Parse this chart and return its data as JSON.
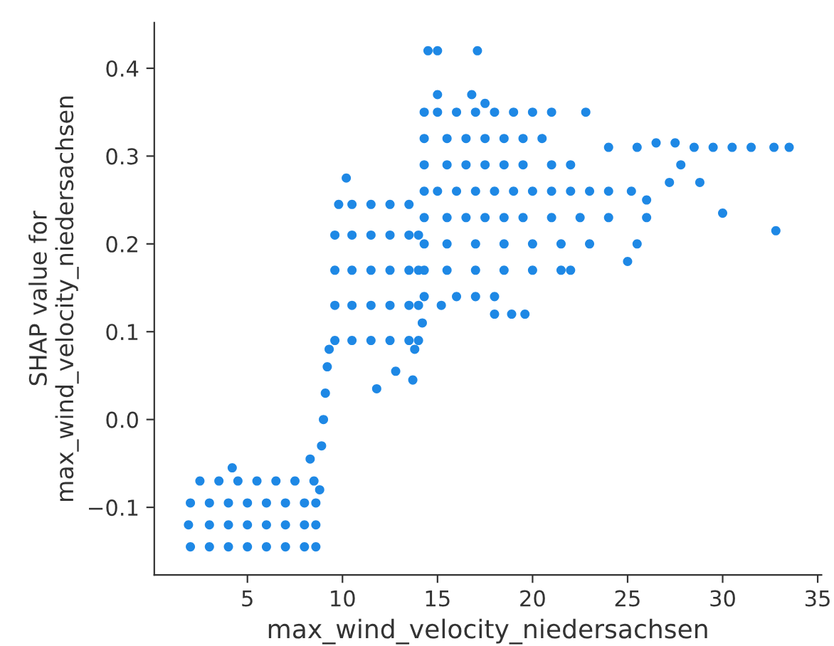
{
  "chart_data": {
    "type": "scatter",
    "xlabel": "max_wind_velocity_niedersachsen",
    "ylabel": "SHAP value for\nmax_wind_velocity_niedersachsen",
    "color": "#1e88e5",
    "marker": "circle",
    "grid": false,
    "xlim": [
      0.1,
      35.2
    ],
    "ylim": [
      -0.177,
      0.452
    ],
    "xticks": [
      5,
      10,
      15,
      20,
      25,
      30,
      35
    ],
    "yticks": [
      {
        "value": -0.1,
        "label": "−0.1"
      },
      {
        "value": 0,
        "label": "0.0"
      },
      0.1,
      0.2,
      0.3,
      0.4
    ],
    "x": [
      2,
      3,
      4,
      5,
      6,
      7,
      8,
      8.6,
      1.9,
      3,
      4,
      5,
      6,
      7,
      8,
      8.6,
      2,
      3,
      4,
      5,
      6,
      7,
      8,
      8.6,
      2.5,
      3.5,
      4.5,
      5.5,
      6.5,
      7.5,
      8.5,
      4.2,
      8.3,
      8.8,
      8.9,
      9.0,
      9.1,
      9.2,
      9.3,
      9.6,
      10.5,
      11.5,
      12.5,
      13.5,
      14.0,
      9.6,
      10.5,
      11.5,
      12.5,
      13.5,
      14.0,
      9.6,
      10.5,
      11.5,
      12.5,
      13.5,
      14.0,
      9.6,
      10.5,
      11.5,
      12.5,
      13.5,
      14.0,
      9.8,
      10.5,
      11.5,
      12.5,
      13.5,
      10.2,
      11.8,
      12.8,
      13.7,
      14.5,
      15.0,
      17.1,
      15,
      16.8,
      17.5,
      14.3,
      15,
      16,
      17,
      18,
      19,
      20,
      21,
      22.8,
      14.3,
      15.5,
      16.5,
      17.5,
      18.5,
      19.5,
      20.5,
      14.3,
      15.5,
      16.5,
      17.5,
      18.5,
      19.5,
      21,
      22,
      14.3,
      15,
      16,
      17,
      18,
      19,
      20,
      21,
      22,
      23,
      24,
      25.2,
      14.3,
      15.5,
      16.5,
      17.5,
      18.5,
      19.5,
      21,
      22.5,
      24,
      26,
      14.3,
      15.5,
      17,
      18.5,
      20,
      21.5,
      23,
      25.5,
      14.3,
      15.5,
      17,
      18.5,
      20,
      21.5,
      22,
      14.3,
      16,
      17,
      18,
      14.2,
      13.8,
      15.2,
      18.0,
      18.9,
      19.6,
      25.5,
      26.5,
      27.5,
      28.5,
      29.5,
      30.5,
      31.5,
      32.7,
      33.5,
      27.8,
      27.2,
      28.8,
      30,
      32.8,
      24,
      26,
      25
    ],
    "values": [
      -0.145,
      -0.145,
      -0.145,
      -0.145,
      -0.145,
      -0.145,
      -0.145,
      -0.145,
      -0.12,
      -0.12,
      -0.12,
      -0.12,
      -0.12,
      -0.12,
      -0.12,
      -0.12,
      -0.095,
      -0.095,
      -0.095,
      -0.095,
      -0.095,
      -0.095,
      -0.095,
      -0.095,
      -0.07,
      -0.07,
      -0.07,
      -0.07,
      -0.07,
      -0.07,
      -0.07,
      -0.055,
      -0.045,
      -0.08,
      -0.03,
      0.0,
      0.03,
      0.06,
      0.08,
      0.09,
      0.09,
      0.09,
      0.09,
      0.09,
      0.09,
      0.13,
      0.13,
      0.13,
      0.13,
      0.13,
      0.13,
      0.17,
      0.17,
      0.17,
      0.17,
      0.17,
      0.17,
      0.21,
      0.21,
      0.21,
      0.21,
      0.21,
      0.21,
      0.245,
      0.245,
      0.245,
      0.245,
      0.245,
      0.275,
      0.035,
      0.055,
      0.045,
      0.42,
      0.42,
      0.42,
      0.37,
      0.37,
      0.36,
      0.35,
      0.35,
      0.35,
      0.35,
      0.35,
      0.35,
      0.35,
      0.35,
      0.35,
      0.32,
      0.32,
      0.32,
      0.32,
      0.32,
      0.32,
      0.32,
      0.29,
      0.29,
      0.29,
      0.29,
      0.29,
      0.29,
      0.29,
      0.29,
      0.26,
      0.26,
      0.26,
      0.26,
      0.26,
      0.26,
      0.26,
      0.26,
      0.26,
      0.26,
      0.26,
      0.26,
      0.23,
      0.23,
      0.23,
      0.23,
      0.23,
      0.23,
      0.23,
      0.23,
      0.23,
      0.23,
      0.2,
      0.2,
      0.2,
      0.2,
      0.2,
      0.2,
      0.2,
      0.2,
      0.17,
      0.17,
      0.17,
      0.17,
      0.17,
      0.17,
      0.17,
      0.14,
      0.14,
      0.14,
      0.14,
      0.11,
      0.08,
      0.13,
      0.12,
      0.12,
      0.12,
      0.31,
      0.315,
      0.315,
      0.31,
      0.31,
      0.31,
      0.31,
      0.31,
      0.31,
      0.29,
      0.27,
      0.27,
      0.235,
      0.215,
      0.31,
      0.25,
      0.18
    ]
  }
}
